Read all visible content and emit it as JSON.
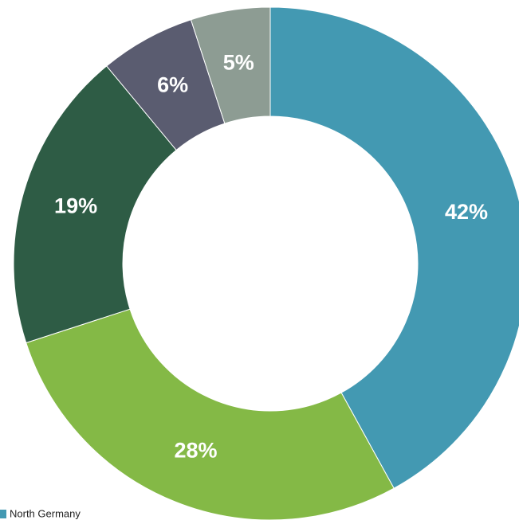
{
  "chart_data": {
    "type": "donut",
    "categories": [
      "North Germany",
      null,
      null,
      null,
      null
    ],
    "values": [
      42,
      28,
      19,
      6,
      5
    ],
    "value_labels": [
      "42%",
      "28%",
      "19%",
      "6%",
      "5%"
    ],
    "colors": [
      "#4399b2",
      "#84b946",
      "#2e5c45",
      "#5a5c70",
      "#8d9c93"
    ]
  }
}
